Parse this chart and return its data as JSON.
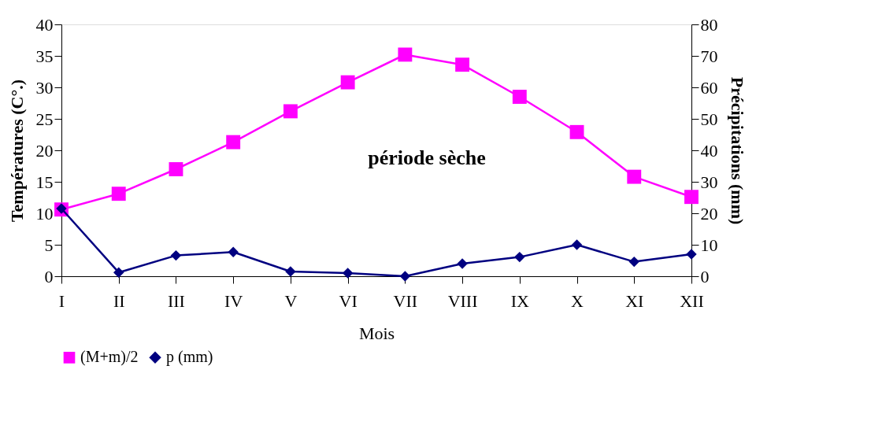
{
  "chart_data": {
    "type": "line",
    "xlabel": "Mois",
    "ylabel": "Températures (C°.)",
    "y2label": "Précipitations (mm)",
    "categories": [
      "I",
      "II",
      "III",
      "IV",
      "V",
      "VI",
      "VII",
      "VIII",
      "IX",
      "X",
      "XI",
      "XII"
    ],
    "series": [
      {
        "name": "(M+m)/2",
        "color": "#ff00ff",
        "marker": "square",
        "values": [
          10.6,
          13.1,
          17.0,
          21.3,
          26.2,
          30.8,
          35.2,
          33.6,
          28.5,
          22.9,
          15.8,
          12.6
        ]
      },
      {
        "name": "p (mm)",
        "color": "#000080",
        "marker": "diamond",
        "axis": "y2",
        "values": [
          21.5,
          1.2,
          6.6,
          7.7,
          1.5,
          1.0,
          0,
          4.0,
          6.1,
          10.0,
          4.6,
          7.0
        ]
      }
    ],
    "ylim": [
      0,
      40
    ],
    "yticks": [
      0,
      5,
      10,
      15,
      20,
      25,
      30,
      35,
      40
    ],
    "y2lim": [
      0,
      80
    ],
    "y2ticks": [
      0,
      10,
      20,
      30,
      40,
      50,
      60,
      70,
      80
    ],
    "annotations": [
      "période sèche"
    ],
    "grid": false,
    "legend": "bottom",
    "line_style": "solid"
  }
}
